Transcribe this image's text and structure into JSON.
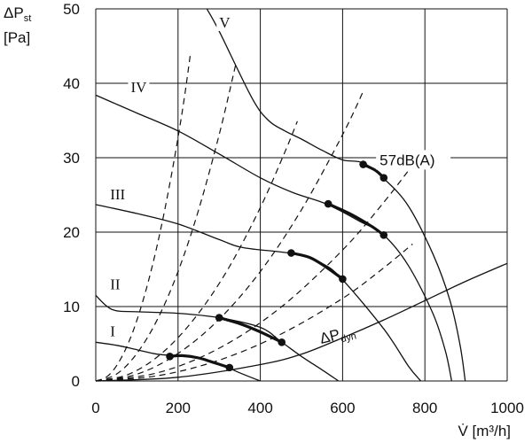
{
  "chart_data": {
    "type": "line",
    "xlabel": "V̇ [m³/h]",
    "ylabel": {
      "delta": "ΔP",
      "sub": "st",
      "unit": "[Pa]"
    },
    "xlim": [
      0,
      1000
    ],
    "ylim": [
      0,
      50
    ],
    "x_ticks": [
      0,
      200,
      400,
      600,
      800,
      1000
    ],
    "y_ticks": [
      0,
      10,
      20,
      30,
      40,
      50
    ],
    "grid": true,
    "series": [
      {
        "name": "I",
        "label_at": [
          35,
          6.0
        ],
        "points": [
          [
            0,
            5.2
          ],
          [
            50,
            4.8
          ],
          [
            100,
            4.2
          ],
          [
            150,
            3.6
          ],
          [
            200,
            3.4
          ],
          [
            250,
            3.1
          ],
          [
            300,
            2.3
          ],
          [
            350,
            1.1
          ],
          [
            400,
            0
          ]
        ]
      },
      {
        "name": "II",
        "label_at": [
          35,
          12.3
        ],
        "points": [
          [
            0,
            11.5
          ],
          [
            40,
            9.6
          ],
          [
            100,
            9.3
          ],
          [
            200,
            9.1
          ],
          [
            300,
            8.5
          ],
          [
            400,
            7.2
          ],
          [
            450,
            5.3
          ],
          [
            500,
            3.3
          ],
          [
            550,
            1.5
          ],
          [
            590,
            0
          ]
        ]
      },
      {
        "name": "III",
        "label_at": [
          35,
          24.4
        ],
        "points": [
          [
            0,
            23.7
          ],
          [
            100,
            22.5
          ],
          [
            200,
            21.1
          ],
          [
            300,
            19.0
          ],
          [
            360,
            17.9
          ],
          [
            480,
            17.1
          ],
          [
            550,
            15.8
          ],
          [
            600,
            13.6
          ],
          [
            700,
            7.0
          ],
          [
            760,
            2.0
          ],
          [
            790,
            0
          ]
        ]
      },
      {
        "name": "IV",
        "label_at": [
          85,
          38.8
        ],
        "points": [
          [
            0,
            38.4
          ],
          [
            100,
            36.0
          ],
          [
            200,
            33.6
          ],
          [
            300,
            30.5
          ],
          [
            400,
            27.3
          ],
          [
            480,
            25.3
          ],
          [
            560,
            23.8
          ],
          [
            640,
            21.5
          ],
          [
            700,
            19.6
          ],
          [
            760,
            15.5
          ],
          [
            820,
            9.0
          ],
          [
            850,
            4.0
          ],
          [
            865,
            0
          ]
        ]
      },
      {
        "name": "V",
        "label_at": [
          300,
          47.5
        ],
        "points": [
          [
            270,
            50.0
          ],
          [
            300,
            47.0
          ],
          [
            380,
            38.0
          ],
          [
            420,
            35.0
          ],
          [
            460,
            33.6
          ],
          [
            500,
            32.5
          ],
          [
            550,
            31.0
          ],
          [
            600,
            29.7
          ],
          [
            650,
            29.3
          ],
          [
            700,
            27.2
          ],
          [
            760,
            23.5
          ],
          [
            820,
            17.0
          ],
          [
            860,
            11.0
          ],
          [
            885,
            5.0
          ],
          [
            898,
            0
          ]
        ]
      }
    ],
    "operating_segments": [
      {
        "points": [
          [
            180,
            3.3
          ],
          [
            210,
            3.4
          ],
          [
            250,
            3.1
          ],
          [
            280,
            2.6
          ],
          [
            325,
            1.8
          ]
        ]
      },
      {
        "points": [
          [
            300,
            8.5
          ],
          [
            350,
            7.7
          ],
          [
            400,
            6.6
          ],
          [
            452,
            5.2
          ]
        ]
      },
      {
        "points": [
          [
            475,
            17.2
          ],
          [
            520,
            16.6
          ],
          [
            560,
            15.3
          ],
          [
            600,
            13.7
          ]
        ]
      },
      {
        "points": [
          [
            565,
            23.8
          ],
          [
            620,
            22.4
          ],
          [
            670,
            20.8
          ],
          [
            700,
            19.6
          ]
        ]
      },
      {
        "points": [
          [
            650,
            29.1
          ],
          [
            680,
            28.3
          ],
          [
            700,
            27.3
          ]
        ]
      }
    ],
    "dot_points": [
      [
        180,
        3.3
      ],
      [
        325,
        1.8
      ],
      [
        300,
        8.5
      ],
      [
        452,
        5.2
      ],
      [
        475,
        17.2
      ],
      [
        600,
        13.7
      ],
      [
        565,
        23.8
      ],
      [
        700,
        19.6
      ],
      [
        650,
        29.1
      ],
      [
        700,
        27.3
      ]
    ],
    "system_curves": [
      {
        "points": [
          [
            0,
            0
          ],
          [
            30,
            0.7
          ],
          [
            60,
            2.9
          ],
          [
            90,
            6.6
          ],
          [
            120,
            11.8
          ],
          [
            150,
            18.4
          ],
          [
            180,
            26.5
          ],
          [
            210,
            36.1
          ],
          [
            230,
            43.9
          ]
        ]
      },
      {
        "points": [
          [
            0,
            0
          ],
          [
            50,
            0.9
          ],
          [
            100,
            3.7
          ],
          [
            150,
            8.3
          ],
          [
            200,
            14.7
          ],
          [
            250,
            23.0
          ],
          [
            300,
            33.1
          ],
          [
            340,
            42.5
          ]
        ]
      },
      {
        "points": [
          [
            0,
            0
          ],
          [
            80,
            0.9
          ],
          [
            160,
            3.7
          ],
          [
            240,
            8.4
          ],
          [
            320,
            14.9
          ],
          [
            400,
            23.3
          ],
          [
            460,
            30.8
          ],
          [
            490,
            34.9
          ]
        ]
      },
      {
        "points": [
          [
            0,
            0
          ],
          [
            100,
            0.9
          ],
          [
            200,
            3.7
          ],
          [
            300,
            8.3
          ],
          [
            400,
            14.7
          ],
          [
            500,
            23.0
          ],
          [
            600,
            33.1
          ],
          [
            650,
            38.9
          ]
        ]
      },
      {
        "points": [
          [
            0,
            0
          ],
          [
            150,
            1.1
          ],
          [
            300,
            4.4
          ],
          [
            450,
            9.9
          ],
          [
            600,
            17.6
          ],
          [
            700,
            24.0
          ],
          [
            770,
            29.0
          ]
        ]
      },
      {
        "points": [
          [
            0,
            0
          ],
          [
            150,
            0.7
          ],
          [
            300,
            2.8
          ],
          [
            450,
            6.3
          ],
          [
            600,
            11.1
          ],
          [
            700,
            15.2
          ],
          [
            770,
            18.4
          ]
        ]
      }
    ],
    "dynamic_pressure_curve": {
      "label": {
        "delta": "ΔP",
        "sub": "dyn"
      },
      "label_at": [
        548,
        5.0
      ],
      "points": [
        [
          0,
          0
        ],
        [
          200,
          0.5
        ],
        [
          400,
          2.2
        ],
        [
          500,
          3.6
        ],
        [
          600,
          5.8
        ],
        [
          700,
          8.2
        ],
        [
          800,
          10.8
        ],
        [
          900,
          13.4
        ],
        [
          1000,
          15.8
        ]
      ]
    },
    "annotations": [
      {
        "text": "57dB(A)",
        "at": [
          690,
          29.0
        ]
      }
    ]
  }
}
